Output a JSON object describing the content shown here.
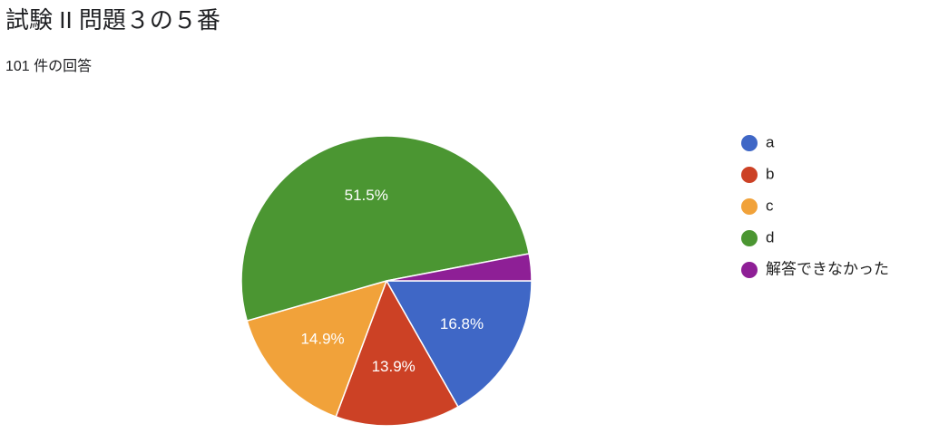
{
  "chart_data": {
    "type": "pie",
    "title": "試験 II 問題３の５番",
    "subtitle": "101 件の回答",
    "categories": [
      "a",
      "b",
      "c",
      "d",
      "解答できなかった"
    ],
    "values": [
      16.8,
      13.9,
      14.9,
      51.5,
      3.0
    ],
    "value_labels": [
      "16.8%",
      "13.9%",
      "14.9%",
      "51.5%",
      null
    ],
    "colors": [
      "#3f67c6",
      "#cc4125",
      "#f1a23a",
      "#4b9632",
      "#8e1f96"
    ],
    "legend": "right"
  }
}
